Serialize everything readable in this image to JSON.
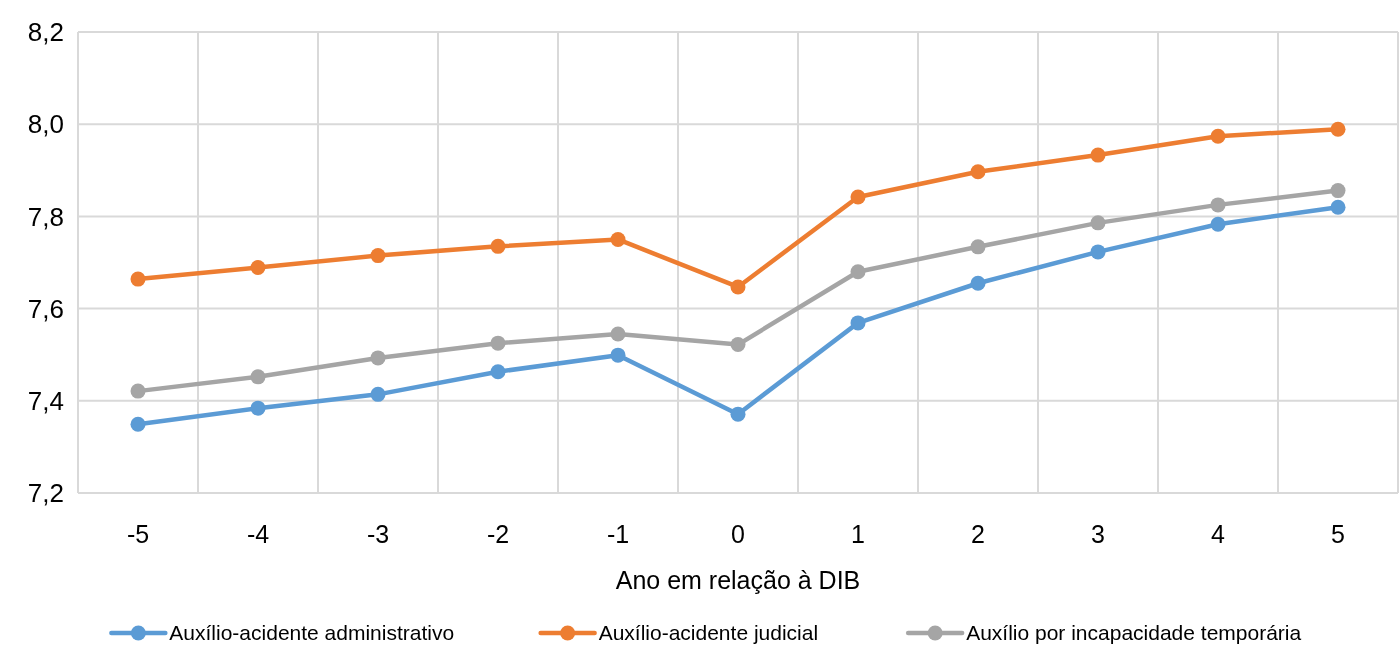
{
  "chart_data": {
    "type": "line",
    "xlabel": "Ano em relação à DIB",
    "categories": [
      "-5",
      "-4",
      "-3",
      "-2",
      "-1",
      "0",
      "1",
      "2",
      "3",
      "4",
      "5"
    ],
    "ylim": [
      7.2,
      8.2
    ],
    "yticks": [
      {
        "value": 7.2,
        "label": "7,2"
      },
      {
        "value": 7.4,
        "label": "7,4"
      },
      {
        "value": 7.6,
        "label": "7,6"
      },
      {
        "value": 7.8,
        "label": "7,8"
      },
      {
        "value": 8.0,
        "label": "8,0"
      },
      {
        "value": 8.2,
        "label": "8,2"
      }
    ],
    "grid": true,
    "legend": "bottom",
    "marker": "circle",
    "line_style": "solid",
    "series": [
      {
        "name": "Auxílio-acidente administrativo",
        "color": "#5b9bd5",
        "values": [
          7.349,
          7.384,
          7.414,
          7.463,
          7.499,
          7.371,
          7.569,
          7.655,
          7.723,
          7.783,
          7.82
        ]
      },
      {
        "name": "Auxílio-acidente judicial",
        "color": "#ed7d31",
        "values": [
          7.664,
          7.689,
          7.715,
          7.735,
          7.75,
          7.647,
          7.842,
          7.897,
          7.933,
          7.974,
          7.989
        ]
      },
      {
        "name": "Auxílio por incapacidade temporária",
        "color": "#a5a5a5",
        "values": [
          7.421,
          7.452,
          7.493,
          7.525,
          7.545,
          7.522,
          7.68,
          7.734,
          7.786,
          7.825,
          7.856
        ]
      }
    ]
  }
}
